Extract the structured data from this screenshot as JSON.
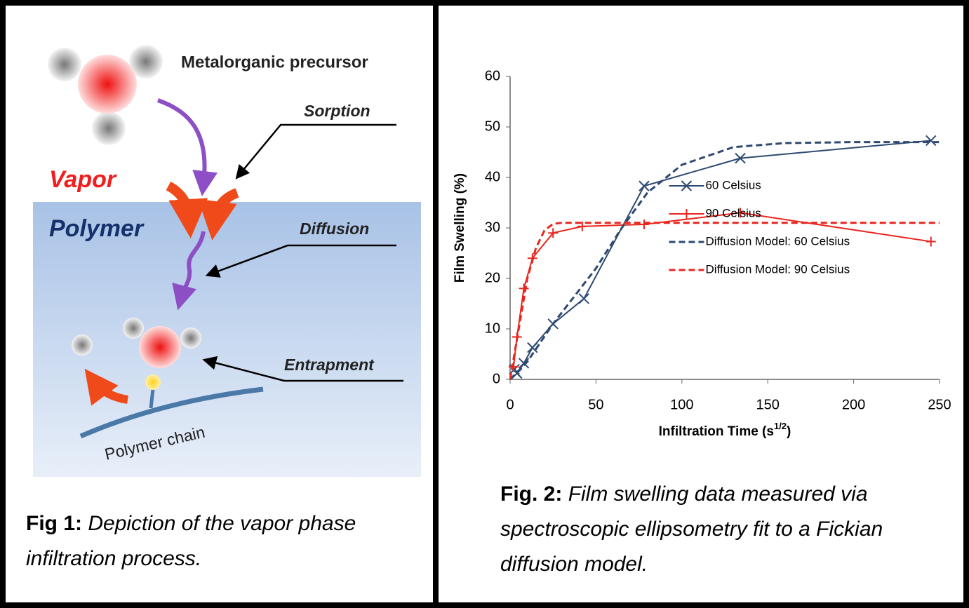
{
  "figure_1": {
    "labels": {
      "precursor": "Metalorganic precursor",
      "sorption": "Sorption",
      "vapor": "Vapor",
      "polymer": "Polymer",
      "diffusion": "Diffusion",
      "entrapment": "Entrapment",
      "polymer_chain": "Polymer chain"
    },
    "caption_label": "Fig 1:",
    "caption_text": "Depiction of the vapor phase infiltration process."
  },
  "chart_data": {
    "type": "line",
    "x_label": "Infiltration Time (s",
    "x_label_sup": "1/2",
    "x_label_end": ")",
    "y_label": "Film Swelling (%)",
    "xlim": [
      0,
      250
    ],
    "xticks": [
      0,
      50,
      100,
      150,
      200,
      250
    ],
    "ylim": [
      0,
      60
    ],
    "yticks": [
      0,
      10,
      20,
      30,
      40,
      50,
      60
    ],
    "grid": false,
    "legend": "center right",
    "series": [
      {
        "name": "60 Celsius",
        "color": "#2e4a70",
        "marker": "x",
        "dashed": false,
        "x": [
          2.5,
          4,
          8,
          13,
          25,
          43,
          78,
          134,
          245
        ],
        "values": [
          2,
          1.2,
          3.2,
          6.3,
          11,
          16,
          38.3,
          43.8,
          47.3
        ]
      },
      {
        "name": "90 Celsius",
        "color": "#e8261e",
        "marker": "+",
        "dashed": false,
        "x": [
          2,
          4,
          8,
          13,
          25,
          42,
          78,
          134,
          245
        ],
        "values": [
          2.5,
          8.4,
          18,
          24,
          29,
          30.3,
          30.7,
          33,
          27.3
        ]
      },
      {
        "name": "Diffusion Model: 60 Celsius",
        "color": "#2e4a70",
        "marker": "none",
        "dashed": true,
        "x": [
          0,
          10,
          25,
          50,
          65,
          80,
          100,
          130,
          160,
          200,
          250
        ],
        "values": [
          0,
          3.5,
          11,
          22,
          30,
          37,
          42.5,
          46,
          46.8,
          47,
          47
        ]
      },
      {
        "name": "Diffusion Model: 90 Celsius",
        "color": "#e8261e",
        "marker": "none",
        "dashed": true,
        "x": [
          0,
          5,
          10,
          15,
          20,
          25,
          30,
          50,
          250
        ],
        "values": [
          0,
          10,
          20,
          26,
          29.5,
          30.8,
          31,
          31,
          31
        ]
      }
    ]
  },
  "figure_2": {
    "caption_label": "Fig. 2:",
    "caption_text": "Film swelling data measured via spectroscopic ellipsometry fit to a Fickian diffusion model."
  }
}
